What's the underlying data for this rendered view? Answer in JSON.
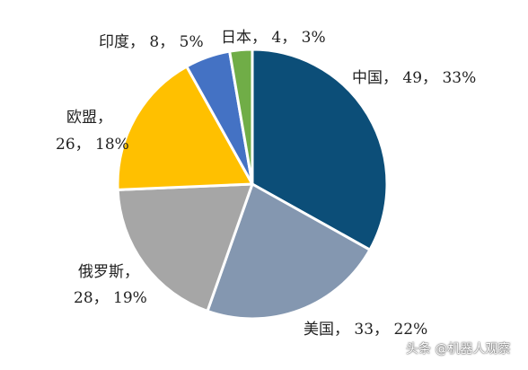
{
  "chart_data": {
    "type": "pie",
    "title": "",
    "series": [
      {
        "name": "中国",
        "value": 49,
        "percent": "33%",
        "label": "中国， 49， 33%",
        "color": "#0c4e78"
      },
      {
        "name": "美国",
        "value": 33,
        "percent": "22%",
        "label": "美国， 33， 22%",
        "color": "#8497b0"
      },
      {
        "name": "俄罗斯",
        "value": 28,
        "percent": "19%",
        "label_lines": [
          "俄罗斯，",
          "28， 19%"
        ],
        "color": "#a6a6a6"
      },
      {
        "name": "欧盟",
        "value": 26,
        "percent": "18%",
        "label_lines": [
          "欧盟，",
          "26， 18%"
        ],
        "color": "#ffc000"
      },
      {
        "name": "印度",
        "value": 8,
        "percent": "5%",
        "label": "印度， 8， 5%",
        "color": "#4472c4"
      },
      {
        "name": "日本",
        "value": 4,
        "percent": "3%",
        "label": "日本， 4， 3%",
        "color": "#70ad47"
      }
    ],
    "start_angle_deg": 0,
    "direction": "clockwise",
    "slice_border_color": "#ffffff"
  },
  "watermark": "头条 @机器人观察"
}
